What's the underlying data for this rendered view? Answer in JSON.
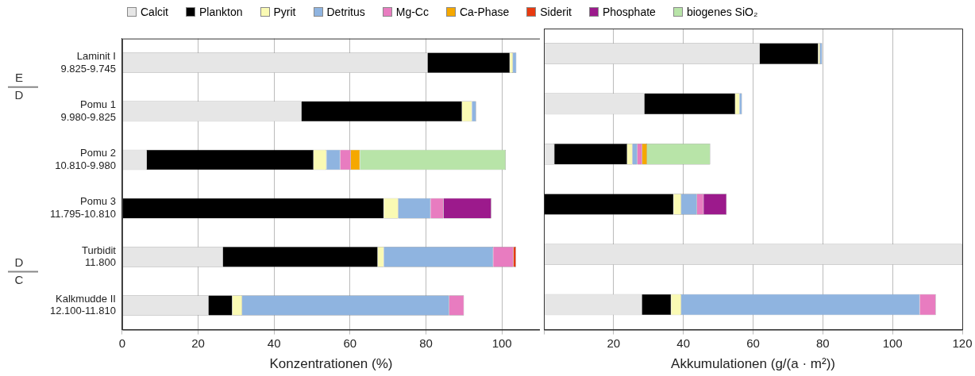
{
  "chart_data": [
    {
      "type": "bar",
      "orientation": "horizontal",
      "stacked": true,
      "legend": "top",
      "grid": "x",
      "categories": [
        "Laminit I\n9.825-9.745",
        "Pomu 1\n9.980-9.825",
        "Pomu 2\n10.810-9.980",
        "Pomu 3\n11.795-10.810",
        "Turbidit\n11.800",
        "Kalkmudde II\n12.100-11.810"
      ],
      "xlabel": "Konzentrationen (%)",
      "xlim": [
        0,
        110
      ],
      "xticks": [
        0,
        20,
        40,
        60,
        80,
        100
      ],
      "annotations": [
        "E",
        "D",
        "D",
        "C"
      ],
      "series": [
        {
          "name": "Calcit",
          "color": "#e6e6e6",
          "values": [
            80.4,
            47.2,
            6.5,
            null,
            26.5,
            22.7
          ]
        },
        {
          "name": "Plankton",
          "color": "#000000",
          "values": [
            21.7,
            42.3,
            43.9,
            68.9,
            40.8,
            6.3
          ]
        },
        {
          "name": "Pyrit",
          "color": "#fafab4",
          "values": [
            0.8,
            2.6,
            3.4,
            3.8,
            1.6,
            2.6
          ]
        },
        {
          "name": "Detritus",
          "color": "#8fb4e0",
          "values": [
            0.9,
            1.1,
            3.6,
            8.5,
            28.8,
            54.5
          ]
        },
        {
          "name": "Mg-Cc",
          "color": "#e87cc0",
          "values": [
            null,
            null,
            2.8,
            3.4,
            5.3,
            3.9
          ]
        },
        {
          "name": "Ca-Phase",
          "color": "#f5a800",
          "values": [
            null,
            null,
            2.4,
            null,
            null,
            null
          ]
        },
        {
          "name": "Siderit",
          "color": "#e83a10",
          "values": [
            null,
            null,
            null,
            null,
            0.7,
            null
          ]
        },
        {
          "name": "Phosphate",
          "color": "#9c1a8c",
          "values": [
            null,
            null,
            null,
            12.6,
            null,
            null
          ]
        },
        {
          "name": "biogenes SiO₂",
          "color": "#b8e4a8",
          "values": [
            null,
            null,
            38.4,
            null,
            null,
            null
          ]
        }
      ]
    },
    {
      "type": "bar",
      "orientation": "horizontal",
      "stacked": true,
      "grid": "x",
      "tick_labels": "x",
      "categories": [
        null,
        null,
        null,
        null,
        null,
        null
      ],
      "xlabel": "Akkumulationen (g/(a · m²))",
      "xlim": [
        0,
        120
      ],
      "xticks": [
        {
          "value": 0,
          "label": null
        },
        20,
        40,
        60,
        80,
        100,
        120
      ],
      "series": [
        {
          "color": "#e6e6e6",
          "values": [
            61.9,
            28.8,
            3.0,
            null,
            120,
            28.1
          ]
        },
        {
          "color": "#000000",
          "values": [
            16.8,
            26.1,
            20.9,
            37.2,
            null,
            8.4
          ]
        },
        {
          "color": "#fafab4",
          "values": [
            0.5,
            1.2,
            1.5,
            2.2,
            null,
            2.9
          ]
        },
        {
          "color": "#8fb4e0",
          "values": [
            0.6,
            0.7,
            1.4,
            4.5,
            null,
            68.4
          ]
        },
        {
          "color": "#e87cc0",
          "values": [
            null,
            null,
            1.4,
            1.9,
            null,
            4.6
          ]
        },
        {
          "color": "#f5a800",
          "values": [
            null,
            null,
            1.4,
            null,
            null,
            null
          ]
        },
        {
          "color": "#9c1a8c",
          "values": [
            null,
            null,
            null,
            6.6,
            null,
            null
          ]
        },
        {
          "color": "#b8e4a8",
          "values": [
            null,
            null,
            18.1,
            null,
            null,
            null
          ]
        }
      ]
    }
  ]
}
